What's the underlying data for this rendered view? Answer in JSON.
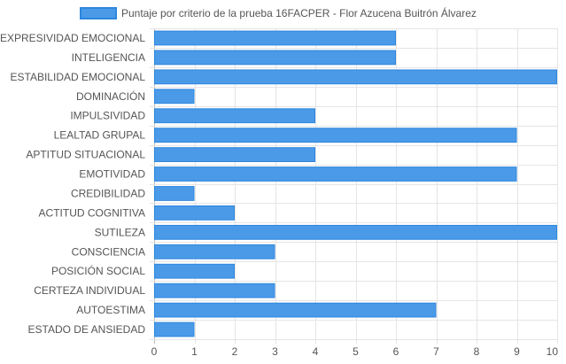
{
  "chart_data": {
    "type": "bar",
    "orientation": "horizontal",
    "legend": {
      "position": "top",
      "entries": [
        "Puntaje por criterio de la prueba 16FACPER - Flor Azucena Buitrón Álvarez"
      ]
    },
    "categories": [
      "EXPRESIVIDAD EMOCIONAL",
      "INTELIGENCIA",
      "ESTABILIDAD EMOCIONAL",
      "DOMINACIÓN",
      "IMPULSIVIDAD",
      "LEALTAD GRUPAL",
      "APTITUD SITUACIONAL",
      "EMOTIVIDAD",
      "CREDIBILIDAD",
      "ACTITUD COGNITIVA",
      "SUTILEZA",
      "CONSCIENCIA",
      "POSICIÓN SOCIAL",
      "CERTEZA INDIVIDUAL",
      "AUTOESTIMA",
      "ESTADO DE ANSIEDAD"
    ],
    "series": [
      {
        "name": "Puntaje por criterio de la prueba 16FACPER - Flor Azucena Buitrón Álvarez",
        "values": [
          6,
          6,
          10,
          1,
          4,
          9,
          4,
          9,
          1,
          2,
          10,
          3,
          2,
          3,
          7,
          1
        ],
        "color": "#4a9ae8",
        "border_color": "#2e86de"
      }
    ],
    "xlim": [
      0,
      10
    ],
    "xticks": [
      0,
      1,
      2,
      3,
      4,
      5,
      6,
      7,
      8,
      9,
      10
    ],
    "grid": true
  }
}
